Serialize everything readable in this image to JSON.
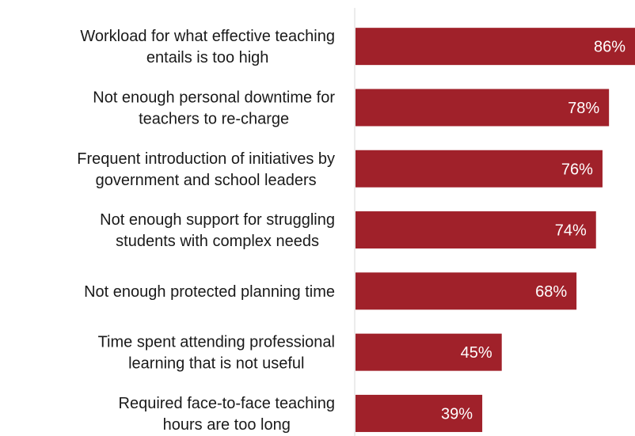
{
  "chart_data": {
    "type": "bar",
    "orientation": "horizontal",
    "categories": [
      [
        "Workload for what effective teaching",
        "entails is too high"
      ],
      [
        "Not enough personal downtime for",
        "teachers to re-charge"
      ],
      [
        "Frequent introduction of initiatives by",
        "government and school leaders"
      ],
      [
        "Not enough support for struggling",
        "students with complex needs"
      ],
      [
        "Not enough protected planning time"
      ],
      [
        "Time spent attending professional",
        "learning that is not useful"
      ],
      [
        "Required face-to-face teaching",
        "hours are too long"
      ]
    ],
    "values": [
      86,
      78,
      76,
      74,
      68,
      45,
      39
    ],
    "data_labels": [
      "86%",
      "78%",
      "76%",
      "74%",
      "68%",
      "45%",
      "39%"
    ],
    "xlim": [
      0,
      86
    ],
    "grid": false,
    "legend": "none",
    "bar_color": "#a0212a",
    "axis_color": "#d9d9d9"
  }
}
